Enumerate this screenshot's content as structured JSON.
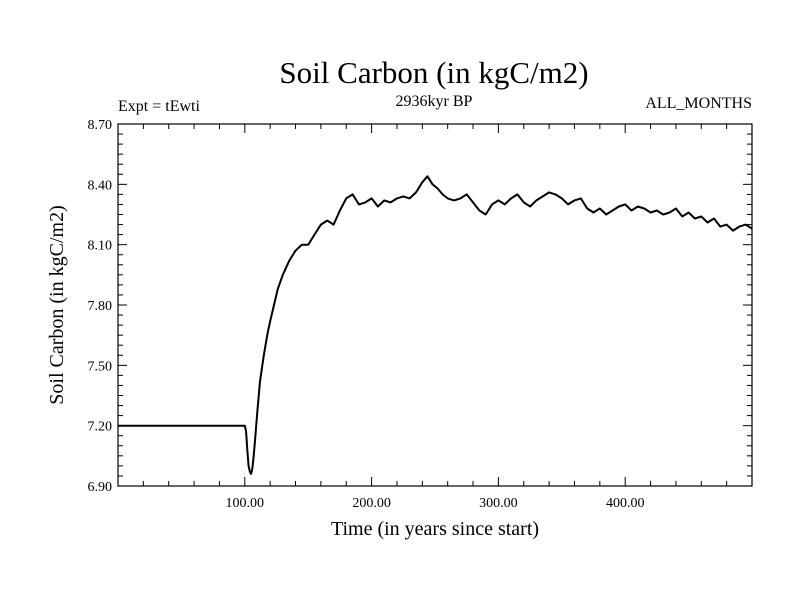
{
  "chart_data": {
    "type": "line",
    "title": "Soil Carbon (in kgC/m2)",
    "subtitle": "2936kyr BP",
    "left_label": "Expt = tEwti",
    "right_label": "ALL_MONTHS",
    "xlabel": "Time (in years since start)",
    "ylabel": "Soil Carbon (in kgC/m2)",
    "xlim": [
      0,
      500
    ],
    "ylim": [
      6.9,
      8.7
    ],
    "x_ticks": [
      100,
      200,
      300,
      400
    ],
    "x_tick_labels": [
      "100.00",
      "200.00",
      "300.00",
      "400.00"
    ],
    "y_ticks": [
      6.9,
      7.2,
      7.5,
      7.8,
      8.1,
      8.4,
      8.7
    ],
    "y_tick_labels": [
      "6.90",
      "7.20",
      "7.50",
      "7.80",
      "8.10",
      "8.40",
      "8.70"
    ],
    "series": [
      {
        "name": "Soil Carbon",
        "color": "#000000",
        "x": [
          0,
          100,
          101,
          102,
          103,
          104,
          105,
          106,
          107,
          108,
          110,
          112,
          115,
          118,
          120,
          123,
          126,
          130,
          135,
          140,
          145,
          150,
          155,
          160,
          165,
          170,
          175,
          180,
          185,
          190,
          195,
          200,
          205,
          210,
          215,
          220,
          225,
          230,
          235,
          240,
          244,
          248,
          252,
          256,
          260,
          265,
          270,
          275,
          280,
          285,
          290,
          295,
          300,
          305,
          310,
          315,
          320,
          325,
          330,
          335,
          340,
          345,
          350,
          355,
          360,
          365,
          370,
          375,
          380,
          385,
          390,
          395,
          400,
          405,
          410,
          415,
          420,
          425,
          430,
          435,
          440,
          445,
          450,
          455,
          460,
          465,
          470,
          475,
          480,
          485,
          490,
          495,
          500
        ],
        "y": [
          7.2,
          7.2,
          7.17,
          7.08,
          7.0,
          6.97,
          6.96,
          6.99,
          7.05,
          7.12,
          7.28,
          7.42,
          7.55,
          7.66,
          7.72,
          7.8,
          7.88,
          7.95,
          8.02,
          8.07,
          8.1,
          8.1,
          8.15,
          8.2,
          8.22,
          8.2,
          8.27,
          8.33,
          8.35,
          8.3,
          8.31,
          8.33,
          8.29,
          8.32,
          8.31,
          8.33,
          8.34,
          8.33,
          8.36,
          8.41,
          8.44,
          8.4,
          8.38,
          8.35,
          8.33,
          8.32,
          8.33,
          8.35,
          8.31,
          8.27,
          8.25,
          8.3,
          8.32,
          8.3,
          8.33,
          8.35,
          8.31,
          8.29,
          8.32,
          8.34,
          8.36,
          8.35,
          8.33,
          8.3,
          8.32,
          8.33,
          8.28,
          8.26,
          8.28,
          8.25,
          8.27,
          8.29,
          8.3,
          8.27,
          8.29,
          8.28,
          8.26,
          8.27,
          8.25,
          8.26,
          8.28,
          8.24,
          8.26,
          8.23,
          8.24,
          8.21,
          8.23,
          8.19,
          8.2,
          8.17,
          8.19,
          8.2,
          8.18
        ]
      }
    ]
  }
}
